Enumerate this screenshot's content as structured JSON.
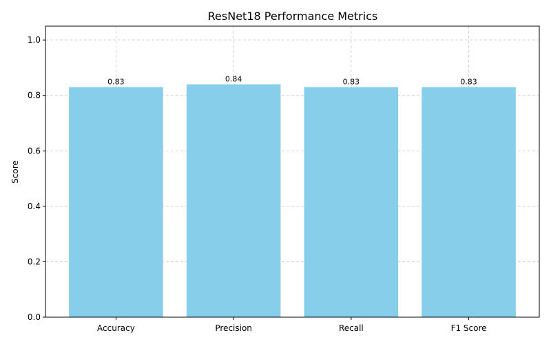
{
  "chart_data": {
    "type": "bar",
    "title": "ResNet18 Performance Metrics",
    "xlabel": "",
    "ylabel": "Score",
    "categories": [
      "Accuracy",
      "Precision",
      "Recall",
      "F1 Score"
    ],
    "values": [
      0.83,
      0.84,
      0.83,
      0.83
    ],
    "value_labels": [
      "0.83",
      "0.84",
      "0.83",
      "0.83"
    ],
    "ylim": [
      0,
      1.05
    ],
    "yticks": [
      0.0,
      0.2,
      0.4,
      0.6,
      0.8,
      1.0
    ],
    "ytick_labels": [
      "0.0",
      "0.2",
      "0.4",
      "0.6",
      "0.8",
      "1.0"
    ],
    "grid": true,
    "bar_color": "#87ceeb"
  }
}
